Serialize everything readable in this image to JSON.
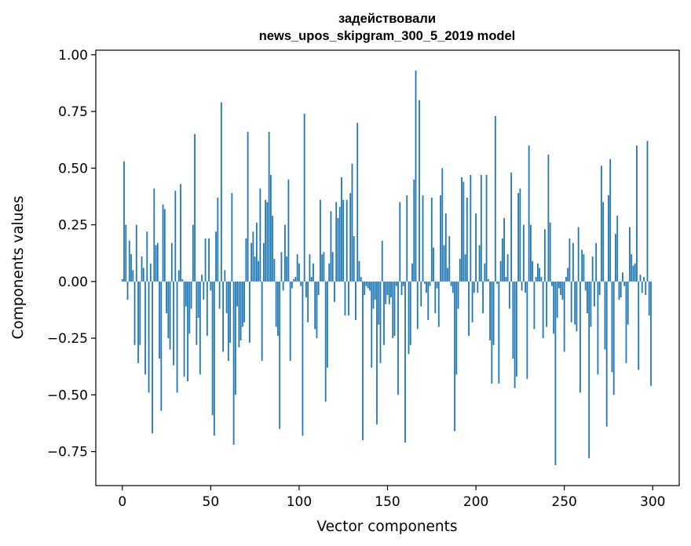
{
  "chart_data": {
    "type": "bar",
    "title": "задействовали\nnews_upos_skipgram_300_5_2019 model",
    "xlabel": "Vector components",
    "ylabel": "Components values",
    "xlim": [
      -15,
      315
    ],
    "ylim": [
      -0.9,
      1.02
    ],
    "xticks": [
      0,
      50,
      100,
      150,
      200,
      250,
      300
    ],
    "yticks": [
      -0.75,
      -0.5,
      -0.25,
      0.0,
      0.25,
      0.5,
      0.75,
      1.0
    ],
    "ytick_labels": [
      "−0.75",
      "−0.50",
      "−0.25",
      "0.00",
      "0.25",
      "0.50",
      "0.75",
      "1.00"
    ],
    "grid": false,
    "bar_color": "#1f77b4",
    "x": "indices 0..299",
    "values": [
      0.01,
      0.53,
      0.25,
      -0.08,
      0.18,
      0.12,
      0.05,
      -0.28,
      0.25,
      -0.36,
      -0.28,
      0.11,
      0.06,
      -0.41,
      0.22,
      -0.49,
      0.08,
      -0.67,
      0.41,
      0.16,
      0.17,
      -0.34,
      -0.57,
      0.34,
      0.32,
      -0.14,
      -0.25,
      -0.3,
      0.17,
      -0.37,
      0.4,
      -0.49,
      0.05,
      0.43,
      0.01,
      -0.42,
      -0.11,
      -0.44,
      -0.23,
      -0.12,
      0.25,
      0.65,
      -0.28,
      -0.16,
      -0.41,
      0.03,
      -0.08,
      0.19,
      -0.24,
      0.19,
      -0.04,
      -0.59,
      -0.68,
      0.22,
      0.37,
      -0.12,
      0.79,
      -0.31,
      0.05,
      -0.14,
      -0.35,
      -0.27,
      0.39,
      -0.72,
      -0.5,
      -0.11,
      -0.29,
      -0.26,
      -0.2,
      -0.18,
      0.19,
      0.66,
      -0.27,
      0.17,
      0.22,
      0.11,
      0.26,
      0.09,
      0.41,
      -0.35,
      0.17,
      0.36,
      0.35,
      0.66,
      0.47,
      0.29,
      0.1,
      -0.2,
      -0.24,
      -0.65,
      0.13,
      -0.04,
      0.25,
      0.11,
      0.45,
      -0.35,
      -0.03,
      0.01,
      0.02,
      0.12,
      0.08,
      -0.02,
      -0.68,
      0.74,
      -0.07,
      -0.18,
      0.12,
      0.02,
      0.08,
      -0.21,
      -0.25,
      -0.06,
      0.36,
      0.12,
      0.13,
      -0.53,
      -0.38,
      0.08,
      0.31,
      0.13,
      -0.09,
      0.35,
      0.28,
      0.33,
      0.46,
      0.36,
      -0.15,
      0.36,
      -0.15,
      0.39,
      0.52,
      0.2,
      -0.17,
      0.7,
      0.09,
      0.02,
      -0.7,
      -0.06,
      -0.02,
      -0.03,
      -0.04,
      -0.38,
      -0.12,
      -0.08,
      -0.63,
      -0.19,
      -0.36,
      0.18,
      -0.28,
      -0.1,
      -0.06,
      -0.1,
      -0.07,
      -0.25,
      -0.24,
      -0.02,
      -0.5,
      0.35,
      -0.06,
      -0.02,
      -0.71,
      0.38,
      -0.32,
      -0.28,
      0.08,
      0.45,
      0.93,
      -0.21,
      0.8,
      -0.11,
      0.38,
      -0.01,
      -0.05,
      -0.17,
      -0.02,
      0.37,
      0.15,
      -0.14,
      -0.03,
      -0.2,
      0.38,
      0.5,
      0.16,
      0.3,
      0.06,
      0.2,
      -0.02,
      -0.05,
      -0.66,
      -0.41,
      -0.12,
      0.1,
      0.46,
      0.44,
      0.12,
      0.37,
      -0.24,
      0.47,
      -0.18,
      -0.05,
      0.3,
      -0.05,
      0.16,
      0.47,
      -0.14,
      0.08,
      0.47,
      0.01,
      -0.26,
      -0.45,
      -0.28,
      0.73,
      -0.01,
      -0.45,
      0.09,
      0.19,
      0.28,
      0.02,
      0.12,
      -0.12,
      0.48,
      -0.34,
      -0.47,
      -0.42,
      0.39,
      0.41,
      -0.04,
      0.25,
      -0.05,
      -0.43,
      0.6,
      0.25,
      0.09,
      -0.21,
      0.02,
      0.08,
      0.06,
      0.02,
      -0.25,
      0.23,
      -0.2,
      0.56,
      0.26,
      -0.02,
      -0.23,
      -0.81,
      -0.16,
      -0.03,
      -0.06,
      -0.08,
      -0.31,
      0.02,
      0.06,
      0.19,
      -0.18,
      0.17,
      -0.19,
      -0.22,
      0.24,
      -0.49,
      0.14,
      0.12,
      -0.04,
      -0.14,
      -0.78,
      -0.2,
      0.11,
      -0.11,
      0.17,
      -0.41,
      -0.06,
      0.51,
      0.35,
      -0.3,
      -0.64,
      0.38,
      0.54,
      -0.4,
      -0.5,
      0.21,
      0.29,
      -0.08,
      -0.07,
      0.04,
      -0.02,
      -0.36,
      -0.19,
      0.24,
      0.12,
      0.07,
      0.08,
      0.6,
      -0.39,
      0.03,
      -0.05,
      0.02,
      -0.06,
      0.62,
      -0.15,
      -0.46
    ]
  }
}
